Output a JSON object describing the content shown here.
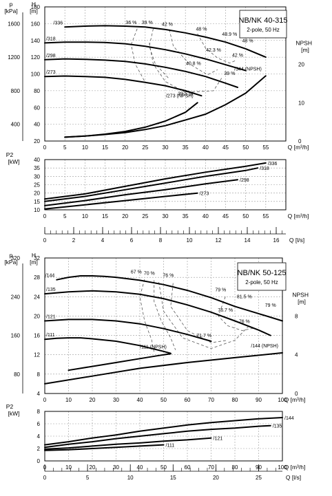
{
  "chart_data": [
    {
      "type": "line",
      "panel": "head",
      "model_title": "NB/NK 40-315",
      "model_subtitle": "2-pole, 50 Hz",
      "pressure_axis_unit": "p [kPa]",
      "head_axis_unit": "H [m]",
      "npsh_axis_unit": "NPSH [m]",
      "xlabel": "Q [m³/h]",
      "xlim": [
        0,
        60
      ],
      "xticks": [
        0,
        5,
        10,
        15,
        20,
        25,
        30,
        35,
        40,
        45,
        50,
        55
      ],
      "ylim": [
        20,
        180
      ],
      "yticks": [
        20,
        40,
        60,
        80,
        100,
        120,
        140,
        160,
        180
      ],
      "pressure_ticks": [
        400,
        800,
        1200,
        1600
      ],
      "npsh_lim": [
        0,
        35
      ],
      "npsh_ticks": [
        0,
        10,
        20
      ],
      "grid": true,
      "series": [
        {
          "name": "/336",
          "x": [
            5,
            10,
            15,
            20,
            25,
            30,
            35,
            40,
            45,
            50,
            55
          ],
          "y": [
            156,
            157,
            157.5,
            157,
            156,
            153,
            149,
            144,
            138,
            130,
            120
          ]
        },
        {
          "name": "/318",
          "x": [
            0,
            5,
            10,
            15,
            20,
            25,
            30,
            35,
            40,
            45,
            50
          ],
          "y": [
            137,
            138,
            138,
            137.5,
            136,
            133,
            129,
            124,
            118,
            111,
            104
          ]
        },
        {
          "name": "/298",
          "x": [
            0,
            5,
            10,
            15,
            20,
            25,
            30,
            35,
            40,
            45,
            48
          ],
          "y": [
            117,
            118,
            117.5,
            116.5,
            115,
            112,
            108,
            103,
            97,
            89,
            84
          ]
        },
        {
          "name": "/273",
          "x": [
            0,
            5,
            10,
            15,
            20,
            25,
            30,
            35,
            39
          ],
          "y": [
            97,
            97.5,
            97,
            96,
            93.5,
            90,
            86,
            80,
            74
          ]
        },
        {
          "name": "/273 (NPSH)",
          "axis": "npsh",
          "x": [
            5,
            10,
            15,
            20,
            25,
            30,
            35,
            38
          ],
          "y": [
            1,
            1.3,
            1.8,
            2.5,
            3.6,
            5.2,
            7.5,
            10
          ]
        },
        {
          "name": "/344 (NPSH)",
          "axis": "npsh",
          "x": [
            5,
            10,
            15,
            20,
            25,
            30,
            35,
            40,
            45,
            50,
            55
          ],
          "y": [
            1,
            1.3,
            1.7,
            2.2,
            3,
            4,
            5.5,
            7,
            9.5,
            12.5,
            17
          ]
        }
      ],
      "efficiency_labels": [
        {
          "text": "36 %",
          "x": 21.5,
          "y": 158
        },
        {
          "text": "39 %",
          "x": 25.5,
          "y": 158
        },
        {
          "text": "42 %",
          "x": 30.5,
          "y": 156
        },
        {
          "text": "48 %",
          "x": 39,
          "y": 150
        },
        {
          "text": "48.9 %",
          "x": 46,
          "y": 144
        },
        {
          "text": "48 %",
          "x": 50.5,
          "y": 136
        },
        {
          "text": "42.3 %",
          "x": 42,
          "y": 125
        },
        {
          "text": "42 %",
          "x": 48,
          "y": 119
        },
        {
          "text": "40.8 %",
          "x": 37,
          "y": 109
        },
        {
          "text": "39 %",
          "x": 46,
          "y": 97
        },
        {
          "text": "39.5 %",
          "x": 35,
          "y": 73
        }
      ],
      "efficiency_contours": [
        {
          "x": [
            23,
            21.5,
            22.5,
            25
          ],
          "y": [
            154,
            135,
            112,
            90
          ]
        },
        {
          "x": [
            27,
            26,
            27.5,
            31
          ],
          "y": [
            154,
            133,
            112,
            94
          ]
        },
        {
          "x": [
            31,
            32,
            36,
            40.5,
            43
          ],
          "y": [
            153,
            133,
            112,
            99,
            105
          ]
        },
        {
          "x": [
            38,
            40,
            43,
            46,
            47.5
          ],
          "y": [
            148,
            131,
            119,
            113,
            116
          ]
        },
        {
          "x": [
            26,
            27,
            30,
            35,
            42,
            44
          ],
          "y": [
            137,
            112,
            91,
            78,
            80,
            95
          ]
        }
      ]
    },
    {
      "type": "line",
      "panel": "power",
      "power_axis_unit": "P2 [kW]",
      "xlabel_primary": "Q [m³/h]",
      "xlabel_secondary": "Q [l/s]",
      "xlim": [
        0,
        60
      ],
      "xticks": [
        0,
        5,
        10,
        15,
        20,
        25,
        30,
        35,
        40,
        45,
        50,
        55
      ],
      "ls_ticks": [
        0,
        2,
        4,
        6,
        8,
        10,
        12,
        14,
        16
      ],
      "ylim": [
        10,
        40
      ],
      "yticks": [
        10,
        15,
        20,
        25,
        30,
        35,
        40
      ],
      "grid": true,
      "series": [
        {
          "name": "/336",
          "x": [
            0,
            10,
            20,
            30,
            40,
            50,
            55
          ],
          "y": [
            16.5,
            19.5,
            24,
            28.5,
            32.5,
            36,
            38
          ]
        },
        {
          "name": "/318",
          "x": [
            0,
            10,
            20,
            30,
            40,
            50,
            53
          ],
          "y": [
            15,
            18,
            22,
            26,
            30,
            33.5,
            35
          ]
        },
        {
          "name": "/298",
          "x": [
            0,
            10,
            20,
            30,
            40,
            48
          ],
          "y": [
            12.5,
            15.5,
            19,
            22,
            25.5,
            28
          ]
        },
        {
          "name": "/273",
          "x": [
            0,
            10,
            20,
            30,
            38
          ],
          "y": [
            10.5,
            13,
            15.5,
            18,
            20
          ]
        }
      ]
    },
    {
      "type": "line",
      "panel": "head",
      "model_title": "NB/NK 50-125",
      "model_subtitle": "2-pole, 50 Hz",
      "pressure_axis_unit": "p [kPa]",
      "head_axis_unit": "H [m]",
      "npsh_axis_unit": "NPSH [m]",
      "xlabel": "Q [m³/h]",
      "xlim": [
        0,
        100
      ],
      "xticks": [
        0,
        10,
        20,
        30,
        40,
        50,
        60,
        70,
        80,
        90,
        100
      ],
      "ylim": [
        4,
        32
      ],
      "yticks": [
        4,
        8,
        12,
        16,
        20,
        24,
        28,
        32
      ],
      "pressure_ticks": [
        80,
        160,
        240,
        320
      ],
      "npsh_lim": [
        0,
        14
      ],
      "npsh_ticks": [
        0,
        4,
        8
      ],
      "grid": true,
      "series": [
        {
          "name": "/144",
          "x": [
            5,
            10,
            15,
            20,
            25,
            30,
            40,
            50,
            60,
            70,
            80,
            90,
            100
          ],
          "y": [
            27.5,
            28,
            28.3,
            28.3,
            28.2,
            28,
            27.4,
            26.5,
            25.3,
            23.8,
            22,
            20.5,
            19
          ]
        },
        {
          "name": "/135",
          "x": [
            0,
            10,
            20,
            30,
            40,
            50,
            60,
            70,
            80,
            90,
            95
          ],
          "y": [
            24.6,
            25,
            25.2,
            25,
            24.5,
            23.6,
            22.3,
            20.8,
            19,
            17.1,
            16
          ]
        },
        {
          "name": "/121",
          "x": [
            0,
            10,
            20,
            30,
            40,
            50,
            60,
            70
          ],
          "y": [
            19,
            19.3,
            19.3,
            19,
            18.4,
            17.4,
            16.2,
            14.8
          ]
        },
        {
          "name": "/111",
          "x": [
            0,
            5,
            10,
            15,
            20,
            30,
            40,
            50,
            53
          ],
          "y": [
            15.2,
            15.4,
            15.5,
            15.5,
            15.3,
            14.8,
            13.9,
            12.7,
            12.3
          ]
        },
        {
          "name": "/111 (NPSH)",
          "axis": "npsh",
          "x": [
            10,
            20,
            30,
            40,
            50,
            53
          ],
          "y": [
            2.4,
            2.8,
            3.2,
            3.6,
            4,
            4.1
          ]
        },
        {
          "name": "/144 (NPSH)",
          "axis": "npsh",
          "x": [
            0,
            20,
            40,
            60,
            80,
            100
          ],
          "y": [
            1,
            1.8,
            2.6,
            3.2,
            3.7,
            4.2
          ]
        }
      ],
      "efficiency_labels": [
        {
          "text": "67 %",
          "x": 38.5,
          "y": 28.5
        },
        {
          "text": "70 %",
          "x": 44,
          "y": 28.2
        },
        {
          "text": "76 %",
          "x": 52,
          "y": 27.8
        },
        {
          "text": "79 %",
          "x": 74,
          "y": 24.8
        },
        {
          "text": "81.5 %",
          "x": 84,
          "y": 23.4
        },
        {
          "text": "79 %",
          "x": 95,
          "y": 21.6
        },
        {
          "text": "76.7 %",
          "x": 76,
          "y": 20.6
        },
        {
          "text": "76 %",
          "x": 84,
          "y": 18.3
        },
        {
          "text": "71.7 %",
          "x": 67,
          "y": 15.4
        }
      ],
      "efficiency_contours": [
        {
          "x": [
            42,
            40,
            42,
            45,
            46
          ],
          "y": [
            27.6,
            24,
            19,
            15,
            12.5
          ]
        },
        {
          "x": [
            46,
            46,
            49,
            53,
            55
          ],
          "y": [
            27.4,
            23,
            19,
            15.5,
            13
          ]
        },
        {
          "x": [
            54,
            53,
            60,
            70,
            77
          ],
          "y": [
            26.8,
            22,
            17,
            14.5,
            15
          ]
        },
        {
          "x": [
            76,
            73,
            77,
            83,
            88
          ],
          "y": [
            24,
            20,
            18,
            17,
            17.5
          ]
        },
        {
          "x": [
            48,
            50,
            58,
            70,
            80,
            86
          ],
          "y": [
            27,
            21,
            15.5,
            13.3,
            15,
            18
          ]
        }
      ]
    },
    {
      "type": "line",
      "panel": "power",
      "power_axis_unit": "P2 [kW]",
      "xlabel_primary": "Q [m³/h]",
      "xlabel_secondary": "Q [l/s]",
      "xlim": [
        0,
        100
      ],
      "xticks": [
        0,
        10,
        20,
        30,
        40,
        50,
        60,
        70,
        80,
        90,
        100
      ],
      "ls_ticks": [
        0,
        5,
        10,
        15,
        20,
        25
      ],
      "ylim": [
        0,
        8
      ],
      "yticks": [
        0,
        2,
        4,
        6,
        8
      ],
      "grid": true,
      "series": [
        {
          "name": "/144",
          "x": [
            0,
            10,
            20,
            30,
            40,
            50,
            60,
            70,
            80,
            90,
            100
          ],
          "y": [
            2.6,
            3.1,
            3.7,
            4.2,
            4.8,
            5.3,
            5.8,
            6.2,
            6.5,
            6.8,
            7
          ]
        },
        {
          "name": "/135",
          "x": [
            0,
            10,
            20,
            30,
            40,
            50,
            60,
            70,
            80,
            90,
            95
          ],
          "y": [
            2.2,
            2.7,
            3.1,
            3.6,
            4,
            4.4,
            4.8,
            5.1,
            5.3,
            5.6,
            5.7
          ]
        },
        {
          "name": "/121",
          "x": [
            0,
            10,
            20,
            30,
            40,
            50,
            60,
            70
          ],
          "y": [
            1.9,
            2.1,
            2.4,
            2.7,
            2.9,
            3.2,
            3.4,
            3.7
          ]
        },
        {
          "name": "/111",
          "x": [
            0,
            10,
            20,
            30,
            40,
            50
          ],
          "y": [
            1.7,
            1.8,
            2,
            2.2,
            2.4,
            2.6
          ]
        }
      ]
    }
  ]
}
